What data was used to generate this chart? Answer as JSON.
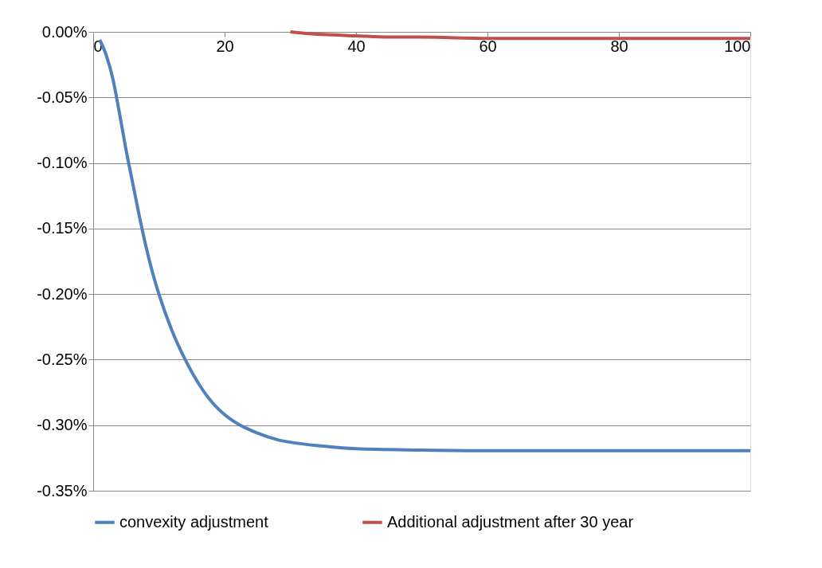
{
  "chart_data": {
    "type": "line",
    "xlim": [
      0,
      100
    ],
    "xticks": [
      0,
      20,
      40,
      60,
      80,
      100
    ],
    "ylim": [
      -0.35,
      0
    ],
    "yticks": [
      {
        "value": 0,
        "label": "0.00%"
      },
      {
        "value": -0.05,
        "label": "-0.05%"
      },
      {
        "value": -0.1,
        "label": "-0.10%"
      },
      {
        "value": -0.15,
        "label": "-0.15%"
      },
      {
        "value": -0.2,
        "label": "-0.20%"
      },
      {
        "value": -0.25,
        "label": "-0.25%"
      },
      {
        "value": -0.3,
        "label": "-0.30%"
      },
      {
        "value": -0.35,
        "label": "-0.35%"
      }
    ],
    "grid": "y",
    "legend": "bottom",
    "marker": "none",
    "line_style": "solid",
    "series": [
      {
        "name": "convexity adjustment",
        "color": "#4f81bd",
        "x": [
          1,
          2,
          3,
          4,
          5,
          6,
          7,
          8,
          9,
          10,
          12,
          14,
          16,
          18,
          20,
          22,
          25,
          28,
          30,
          35,
          40,
          50,
          60,
          80,
          100
        ],
        "values": [
          -0.006,
          -0.018,
          -0.036,
          -0.062,
          -0.09,
          -0.115,
          -0.14,
          -0.163,
          -0.183,
          -0.2,
          -0.228,
          -0.25,
          -0.268,
          -0.282,
          -0.292,
          -0.299,
          -0.306,
          -0.311,
          -0.313,
          -0.316,
          -0.318,
          -0.319,
          -0.3195,
          -0.3195,
          -0.3195
        ]
      },
      {
        "name": "Additional adjustment  after 30 year",
        "color": "#c0504d",
        "x": [
          30,
          32,
          35,
          40,
          45,
          50,
          60,
          80,
          100
        ],
        "values": [
          0,
          -0.001,
          -0.002,
          -0.003,
          -0.004,
          -0.004,
          -0.005,
          -0.005,
          -0.005
        ]
      }
    ]
  }
}
